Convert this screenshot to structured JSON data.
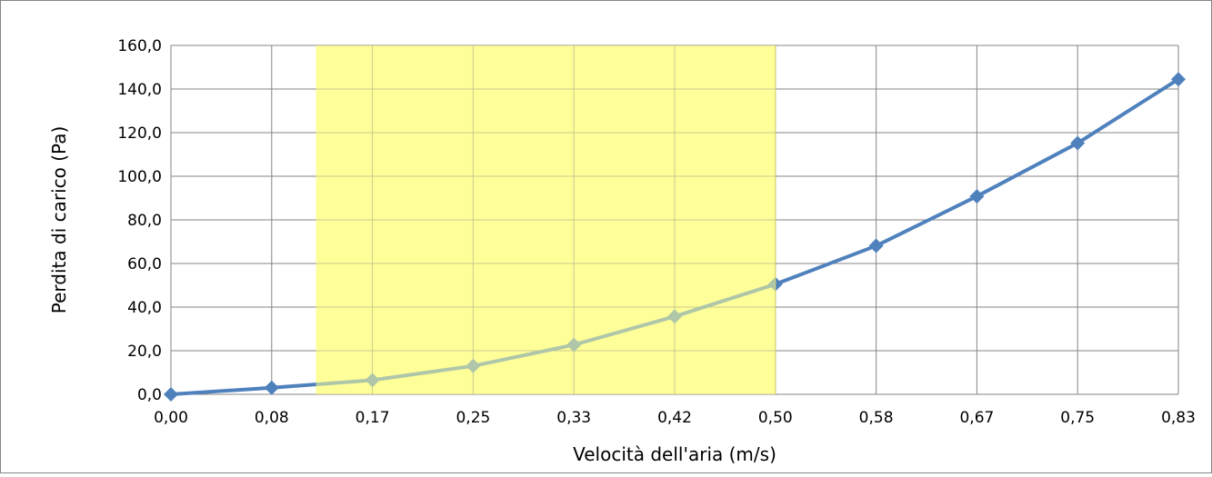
{
  "chart_data": {
    "type": "line",
    "title": "",
    "xlabel": "Velocità dell'aria (m/s)",
    "ylabel": "Perdita di carico (Pa)",
    "categories": [
      "0,00",
      "0,08",
      "0,17",
      "0,25",
      "0,33",
      "0,42",
      "0,50",
      "0,58",
      "0,67",
      "0,75",
      "0,83"
    ],
    "y_ticks": [
      "0,0",
      "20,0",
      "40,0",
      "60,0",
      "80,0",
      "100,0",
      "120,0",
      "140,0",
      "160,0"
    ],
    "ylim": [
      0,
      160
    ],
    "grid": true,
    "legend": "none",
    "series": [
      {
        "values": [
          0.0,
          3.0,
          6.5,
          13.0,
          22.7,
          35.7,
          50.5,
          68.1,
          90.8,
          115.2,
          144.5
        ],
        "color": "#4f81bd"
      }
    ],
    "highlight_band": {
      "x_range": [
        0.12,
        0.5
      ],
      "color": "#ffff99"
    }
  }
}
